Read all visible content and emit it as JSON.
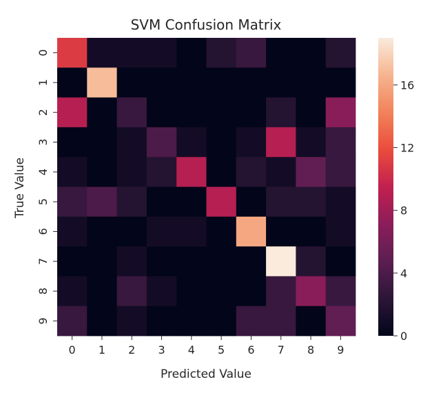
{
  "chart_data": {
    "type": "heatmap",
    "title": "SVM Confusion Matrix",
    "xlabel": "Predicted Value",
    "ylabel": "True Value",
    "x_categories": [
      "0",
      "1",
      "2",
      "3",
      "4",
      "5",
      "6",
      "7",
      "8",
      "9"
    ],
    "y_categories": [
      "0",
      "1",
      "2",
      "3",
      "4",
      "5",
      "6",
      "7",
      "8",
      "9"
    ],
    "values": [
      [
        11,
        1,
        1,
        1,
        0,
        2,
        3,
        0,
        0,
        2
      ],
      [
        0,
        17,
        0,
        0,
        0,
        0,
        0,
        0,
        0,
        0
      ],
      [
        9,
        0,
        3,
        0,
        0,
        0,
        0,
        2,
        0,
        7
      ],
      [
        0,
        0,
        1,
        4,
        1,
        0,
        1,
        9,
        1,
        3
      ],
      [
        1,
        0,
        1,
        2,
        9,
        0,
        2,
        1,
        5,
        3
      ],
      [
        3,
        4,
        2,
        0,
        0,
        9,
        0,
        2,
        2,
        1
      ],
      [
        1,
        0,
        0,
        1,
        1,
        0,
        16,
        0,
        0,
        1
      ],
      [
        0,
        0,
        1,
        0,
        0,
        0,
        0,
        19,
        2,
        0
      ],
      [
        1,
        0,
        3,
        1,
        0,
        0,
        0,
        3,
        7,
        3
      ],
      [
        3,
        0,
        1,
        0,
        0,
        0,
        3,
        3,
        0,
        5
      ]
    ],
    "colorbar": {
      "ticks": [
        0,
        4,
        8,
        12,
        16
      ],
      "range": [
        0,
        19
      ],
      "colormap": "rocket",
      "stops": [
        "#03051a",
        "#2b1637",
        "#5c1e51",
        "#8b1d5a",
        "#c2204f",
        "#ea4c3c",
        "#f2825a",
        "#f6b48f",
        "#faebdd"
      ]
    },
    "grid": false,
    "legend": "colorbar-right"
  }
}
